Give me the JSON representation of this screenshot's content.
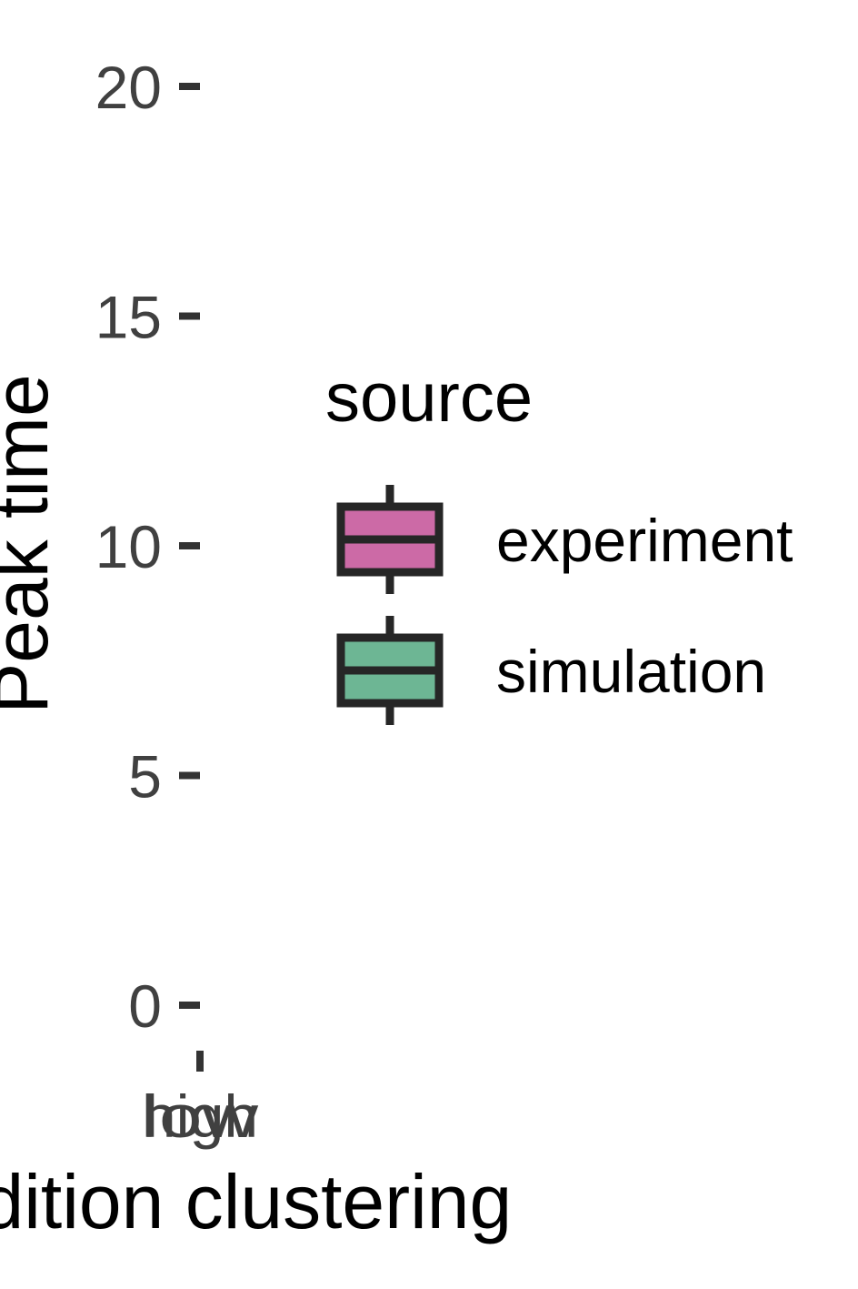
{
  "chart_data": {
    "type": "box",
    "ylabel": "Peak time",
    "xlabel": "Addition clustering",
    "ylim": [
      0,
      20
    ],
    "yticks": [
      0,
      5,
      10,
      15,
      20
    ],
    "categories": [
      "high",
      "low"
    ],
    "grid": false,
    "legend": {
      "title": "source",
      "placement": "right",
      "entries": [
        {
          "name": "experiment",
          "color": "#cc6aa6"
        },
        {
          "name": "simulation",
          "color": "#6db694"
        }
      ]
    },
    "series": [
      {
        "name": "experiment",
        "color": "#cc6aa6"
      },
      {
        "name": "simulation",
        "color": "#6db694"
      }
    ]
  }
}
